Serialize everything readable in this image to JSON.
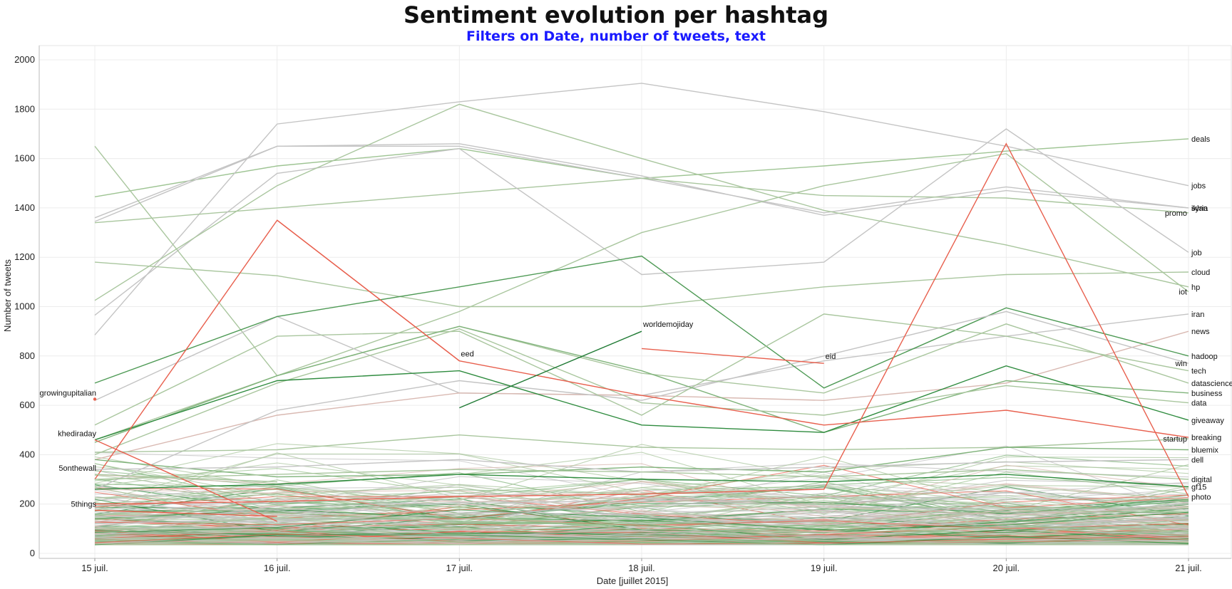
{
  "chart_data": {
    "type": "line",
    "title": "Sentiment evolution per hashtag",
    "subtitle": "Filters on Date, number of tweets, text",
    "xlabel": "Date [juillet 2015]",
    "ylabel": "Number of tweets",
    "categories": [
      "15 juil.",
      "16 juil.",
      "17 juil.",
      "18 juil.",
      "19 juil.",
      "20 juil.",
      "21 juil."
    ],
    "yticks": [
      0,
      200,
      400,
      600,
      800,
      1000,
      1200,
      1400,
      1600,
      1800,
      2000
    ],
    "ylim": [
      0,
      2080
    ],
    "grid": true,
    "colors": {
      "positive": "#2e8b3e",
      "neutral": "#bdbdbd",
      "negative": "#e8604e",
      "title": "#111111",
      "subtitle": "#1a1aff"
    },
    "series": [
      {
        "name": "deals",
        "color": "#9ec493",
        "values": [
          1445,
          1570,
          1640,
          1520,
          1570,
          1630,
          1680
        ]
      },
      {
        "name": "syria",
        "color": "#c4c4c4",
        "values": [
          1345,
          1650,
          1650,
          1520,
          1380,
          1485,
          1400
        ]
      },
      {
        "name": "jobs",
        "color": "#c4c4c4",
        "values": [
          885,
          1740,
          1830,
          1905,
          1790,
          1650,
          1490
        ]
      },
      {
        "name": "iklan",
        "color": "#c4c4c4",
        "values": [
          1360,
          1650,
          1660,
          1530,
          1370,
          1470,
          1400
        ]
      },
      {
        "name": "promo",
        "color": "#a9c69e",
        "values": [
          1340,
          1400,
          1460,
          1520,
          1450,
          1440,
          1380
        ]
      },
      {
        "name": "job",
        "color": "#c4c4c4",
        "values": [
          965,
          1540,
          1640,
          1130,
          1180,
          1720,
          1220
        ]
      },
      {
        "name": "cloud",
        "color": "#a9c69e",
        "values": [
          1180,
          1125,
          1000,
          1000,
          1080,
          1130,
          1140
        ]
      },
      {
        "name": "hp",
        "color": "#a9c69e",
        "values": [
          1025,
          1490,
          1820,
          1600,
          1390,
          1250,
          1080
        ]
      },
      {
        "name": "iot",
        "color": "#a9c69e",
        "values": [
          1650,
          720,
          980,
          1300,
          1490,
          1620,
          1060
        ]
      },
      {
        "name": "iran",
        "color": "#c4c4c4",
        "values": [
          620,
          960,
          650,
          640,
          780,
          880,
          970
        ]
      },
      {
        "name": "news",
        "color": "#d9b9b2",
        "values": [
          380,
          560,
          650,
          640,
          620,
          690,
          900
        ]
      },
      {
        "name": "hadoop",
        "color": "#4e9a55",
        "values": [
          690,
          960,
          1080,
          1205,
          670,
          995,
          800
        ]
      },
      {
        "name": "win",
        "color": "#c4c4c4",
        "values": [
          260,
          580,
          700,
          620,
          800,
          980,
          770
        ]
      },
      {
        "name": "tech",
        "color": "#a9c69e",
        "values": [
          520,
          880,
          900,
          560,
          970,
          880,
          740
        ]
      },
      {
        "name": "datascience",
        "color": "#a9c69e",
        "values": [
          460,
          720,
          920,
          730,
          650,
          930,
          690
        ]
      },
      {
        "name": "business",
        "color": "#7fb37a",
        "values": [
          450,
          720,
          920,
          740,
          490,
          700,
          650
        ]
      },
      {
        "name": "data",
        "color": "#a9c69e",
        "values": [
          400,
          690,
          910,
          610,
          560,
          680,
          610
        ]
      },
      {
        "name": "giveaway",
        "color": "#2e8b3e",
        "values": [
          460,
          700,
          740,
          520,
          490,
          760,
          540
        ]
      },
      {
        "name": "startup",
        "color": "#a9c69e",
        "values": [
          410,
          420,
          480,
          430,
          420,
          430,
          465
        ]
      },
      {
        "name": "breaking",
        "color": "#e8604e",
        "values": [
          300,
          1350,
          780,
          640,
          520,
          580,
          470
        ]
      },
      {
        "name": "bluemix",
        "color": "#7fb37a",
        "values": [
          380,
          310,
          320,
          350,
          330,
          430,
          420
        ]
      },
      {
        "name": "dell",
        "color": "#c4c4c4",
        "values": [
          340,
          350,
          380,
          330,
          350,
          370,
          380
        ]
      },
      {
        "name": "digital",
        "color": "#a9c69e",
        "values": [
          300,
          320,
          340,
          330,
          310,
          340,
          300
        ]
      },
      {
        "name": "gf15",
        "color": "#2e8b3e",
        "values": [
          260,
          280,
          320,
          300,
          290,
          320,
          270
        ]
      },
      {
        "name": "photo",
        "color": "#e8604e",
        "values": [
          200,
          210,
          230,
          240,
          260,
          1660,
          230
        ]
      },
      {
        "name": "growingupitalian",
        "color": "#e8604e",
        "values": [
          625,
          null,
          null,
          null,
          null,
          null,
          null
        ]
      },
      {
        "name": "khediraday",
        "color": "#e8604e",
        "values": [
          460,
          130,
          null,
          null,
          null,
          null,
          null
        ]
      },
      {
        "name": "5onthewall",
        "color": "#a9c69e",
        "values": [
          320,
          290,
          null,
          null,
          null,
          null,
          null
        ]
      },
      {
        "name": "5things",
        "color": "#e8604e",
        "values": [
          175,
          150,
          null,
          null,
          null,
          null,
          null
        ]
      },
      {
        "name": "eed",
        "color": "#e8604e",
        "values": [
          null,
          1350,
          780,
          null,
          null,
          null,
          null
        ]
      },
      {
        "name": "worldemojiday",
        "color": "#1f7a34",
        "values": [
          null,
          null,
          590,
          900,
          null,
          null,
          null
        ]
      },
      {
        "name": "eid",
        "color": "#e8604e",
        "values": [
          null,
          null,
          null,
          830,
          770,
          null,
          null
        ]
      }
    ]
  },
  "labels": {
    "deals": "deals",
    "syria": "syria",
    "jobs": "jobs",
    "iklan": "iklan",
    "promo": "promo",
    "job": "job",
    "cloud": "cloud",
    "hp": "hp",
    "iot": "iot",
    "iran": "iran",
    "news": "news",
    "hadoop": "hadoop",
    "win": "win",
    "tech": "tech",
    "datascience": "datascience",
    "business": "business",
    "data": "data",
    "giveaway": "giveaway",
    "startup": "startup",
    "breaking": "breaking",
    "bluemix": "bluemix",
    "dell": "dell",
    "digital": "digital",
    "gf15": "gf15",
    "photo": "photo",
    "growingupitalian": "growingupitalian",
    "khediraday": "khediraday",
    "5onthewall": "5onthewall",
    "5things": "5things",
    "eed": "eed",
    "worldemojiday": "worldemojiday",
    "eid": "eid"
  }
}
